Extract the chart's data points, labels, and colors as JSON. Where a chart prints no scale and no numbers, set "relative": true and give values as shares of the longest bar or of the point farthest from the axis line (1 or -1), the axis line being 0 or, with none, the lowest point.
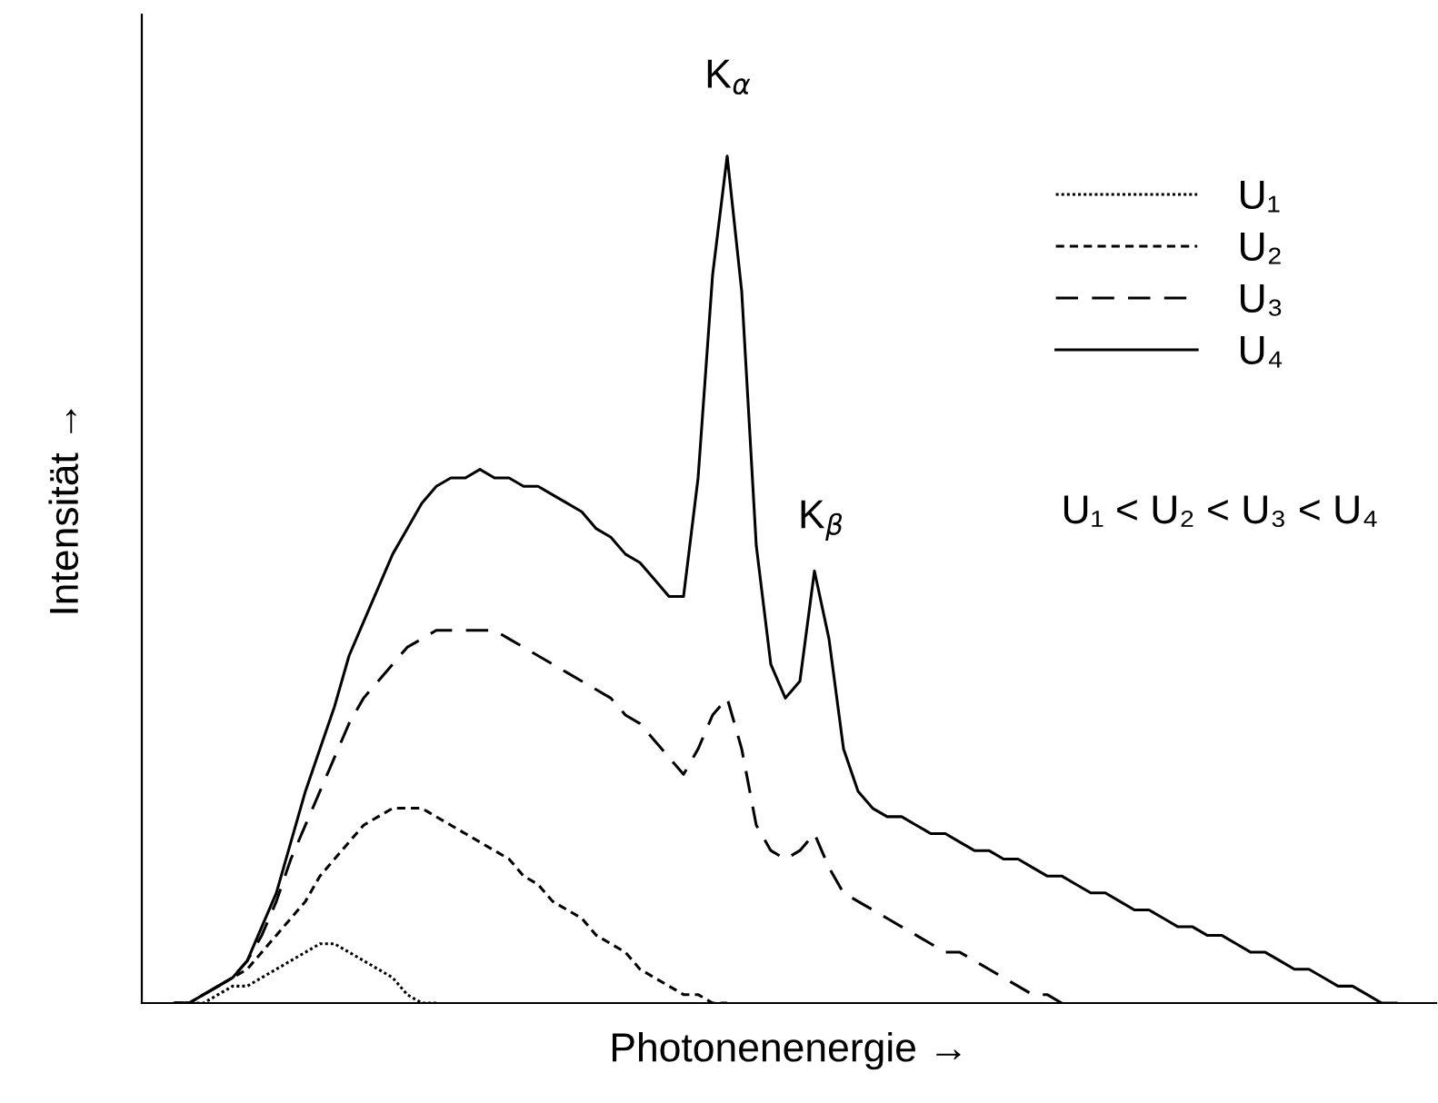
{
  "chart_data": {
    "type": "line",
    "relative": true,
    "xlabel": "Photonenenergie →",
    "ylabel": "Intensität →",
    "annotations": [
      "K$_{α}$",
      "K$_{β}$",
      "U₁ < U₂ < U₃ < U₄"
    ],
    "legend": "top right",
    "grid": false,
    "marker": "none",
    "categories": [
      null,
      null,
      null,
      null,
      null,
      null,
      null,
      null,
      null,
      null,
      null,
      null,
      null,
      null,
      null,
      null,
      null,
      null,
      null,
      null,
      null,
      null,
      null,
      null,
      null,
      null,
      null,
      null,
      null,
      null,
      null,
      null,
      null,
      null,
      null,
      null,
      null,
      null,
      null,
      null,
      null,
      null,
      null,
      null,
      null,
      null,
      null,
      null,
      null,
      null,
      null,
      null,
      null,
      null,
      null,
      null,
      null,
      null,
      null,
      null,
      null,
      null,
      null,
      null,
      null,
      null,
      null,
      null,
      null,
      null,
      null,
      null,
      null,
      null,
      null,
      null,
      null,
      null,
      null,
      null,
      null,
      null,
      null,
      null,
      null
    ],
    "series": [
      {
        "name": "U₁",
        "color": "#000000",
        "line_style": "dotted",
        "values": [
          0,
          0,
          0,
          0.01,
          0.02,
          0.02,
          0.03,
          0.04,
          0.05,
          0.06,
          0.07,
          0.07,
          0.06,
          0.05,
          0.04,
          0.03,
          0.01,
          0,
          0,
          null,
          null,
          null,
          null,
          null,
          null,
          null,
          null,
          null,
          null,
          null,
          null,
          null,
          null,
          null,
          null,
          null,
          null,
          null,
          null,
          null,
          null,
          null,
          null,
          null,
          null,
          null,
          null,
          null,
          null,
          null,
          null,
          null,
          null,
          null,
          null,
          null,
          null,
          null,
          null,
          null,
          null,
          null,
          null,
          null,
          null,
          null,
          null,
          null,
          null,
          null,
          null,
          null,
          null,
          null,
          null,
          null,
          null,
          null,
          null,
          null,
          null,
          null,
          null,
          null,
          null
        ]
      },
      {
        "name": "U₂",
        "color": "#000000",
        "line_style": "dashed",
        "values": [
          0,
          0,
          0.01,
          0.02,
          0.03,
          0.04,
          0.06,
          0.08,
          0.1,
          0.12,
          0.15,
          0.17,
          0.19,
          0.21,
          0.22,
          0.23,
          0.23,
          0.23,
          0.22,
          0.21,
          0.2,
          0.19,
          0.18,
          0.17,
          0.15,
          0.14,
          0.12,
          0.11,
          0.1,
          0.08,
          0.07,
          0.06,
          0.04,
          0.03,
          0.02,
          0.01,
          0.01,
          0,
          0,
          null,
          null,
          null,
          null,
          null,
          null,
          null,
          null,
          null,
          null,
          null,
          null,
          null,
          null,
          null,
          null,
          null,
          null,
          null,
          null,
          null,
          null,
          null,
          null,
          null,
          null,
          null,
          null,
          null,
          null,
          null,
          null,
          null,
          null,
          null,
          null,
          null,
          null,
          null,
          null,
          null,
          null,
          null,
          null,
          null,
          null
        ]
      },
      {
        "name": "U₃",
        "color": "#000000",
        "line_style": "dashed",
        "values": [
          0,
          0,
          0.01,
          0.02,
          0.03,
          0.05,
          0.08,
          0.12,
          0.17,
          0.21,
          0.25,
          0.29,
          0.33,
          0.36,
          0.38,
          0.4,
          0.42,
          0.43,
          0.44,
          0.44,
          0.44,
          0.44,
          0.44,
          0.43,
          0.42,
          0.41,
          0.4,
          0.39,
          0.38,
          0.37,
          0.36,
          0.34,
          0.33,
          0.31,
          0.29,
          0.27,
          0.3,
          0.34,
          0.36,
          0.3,
          0.21,
          0.18,
          0.17,
          0.18,
          0.2,
          0.16,
          0.13,
          0.12,
          0.11,
          0.1,
          0.09,
          0.08,
          0.07,
          0.06,
          0.06,
          0.05,
          0.04,
          0.03,
          0.02,
          0.01,
          0.01,
          0,
          null,
          null,
          null,
          null,
          null,
          null,
          null,
          null,
          null,
          null,
          null,
          null,
          null,
          null,
          null,
          null,
          null,
          null,
          null,
          null,
          null,
          null,
          null
        ]
      },
      {
        "name": "U₄",
        "color": "#000000",
        "line_style": "solid",
        "values": [
          0,
          0,
          0.01,
          0.02,
          0.03,
          0.05,
          0.09,
          0.13,
          0.19,
          0.25,
          0.3,
          0.35,
          0.41,
          0.45,
          0.49,
          0.53,
          0.56,
          0.59,
          0.61,
          0.62,
          0.62,
          0.63,
          0.62,
          0.62,
          0.61,
          0.61,
          0.6,
          0.59,
          0.58,
          0.56,
          0.55,
          0.53,
          0.52,
          0.5,
          0.48,
          0.48,
          0.62,
          0.86,
          1,
          0.84,
          0.54,
          0.4,
          0.36,
          0.38,
          0.51,
          0.43,
          0.3,
          0.25,
          0.23,
          0.22,
          0.22,
          0.21,
          0.2,
          0.2,
          0.19,
          0.18,
          0.18,
          0.17,
          0.17,
          0.16,
          0.15,
          0.15,
          0.14,
          0.13,
          0.13,
          0.12,
          0.11,
          0.11,
          0.1,
          0.09,
          0.09,
          0.08,
          0.08,
          0.07,
          0.06,
          0.06,
          0.05,
          0.04,
          0.04,
          0.03,
          0.02,
          0.02,
          0.01,
          0,
          0
        ]
      }
    ]
  }
}
